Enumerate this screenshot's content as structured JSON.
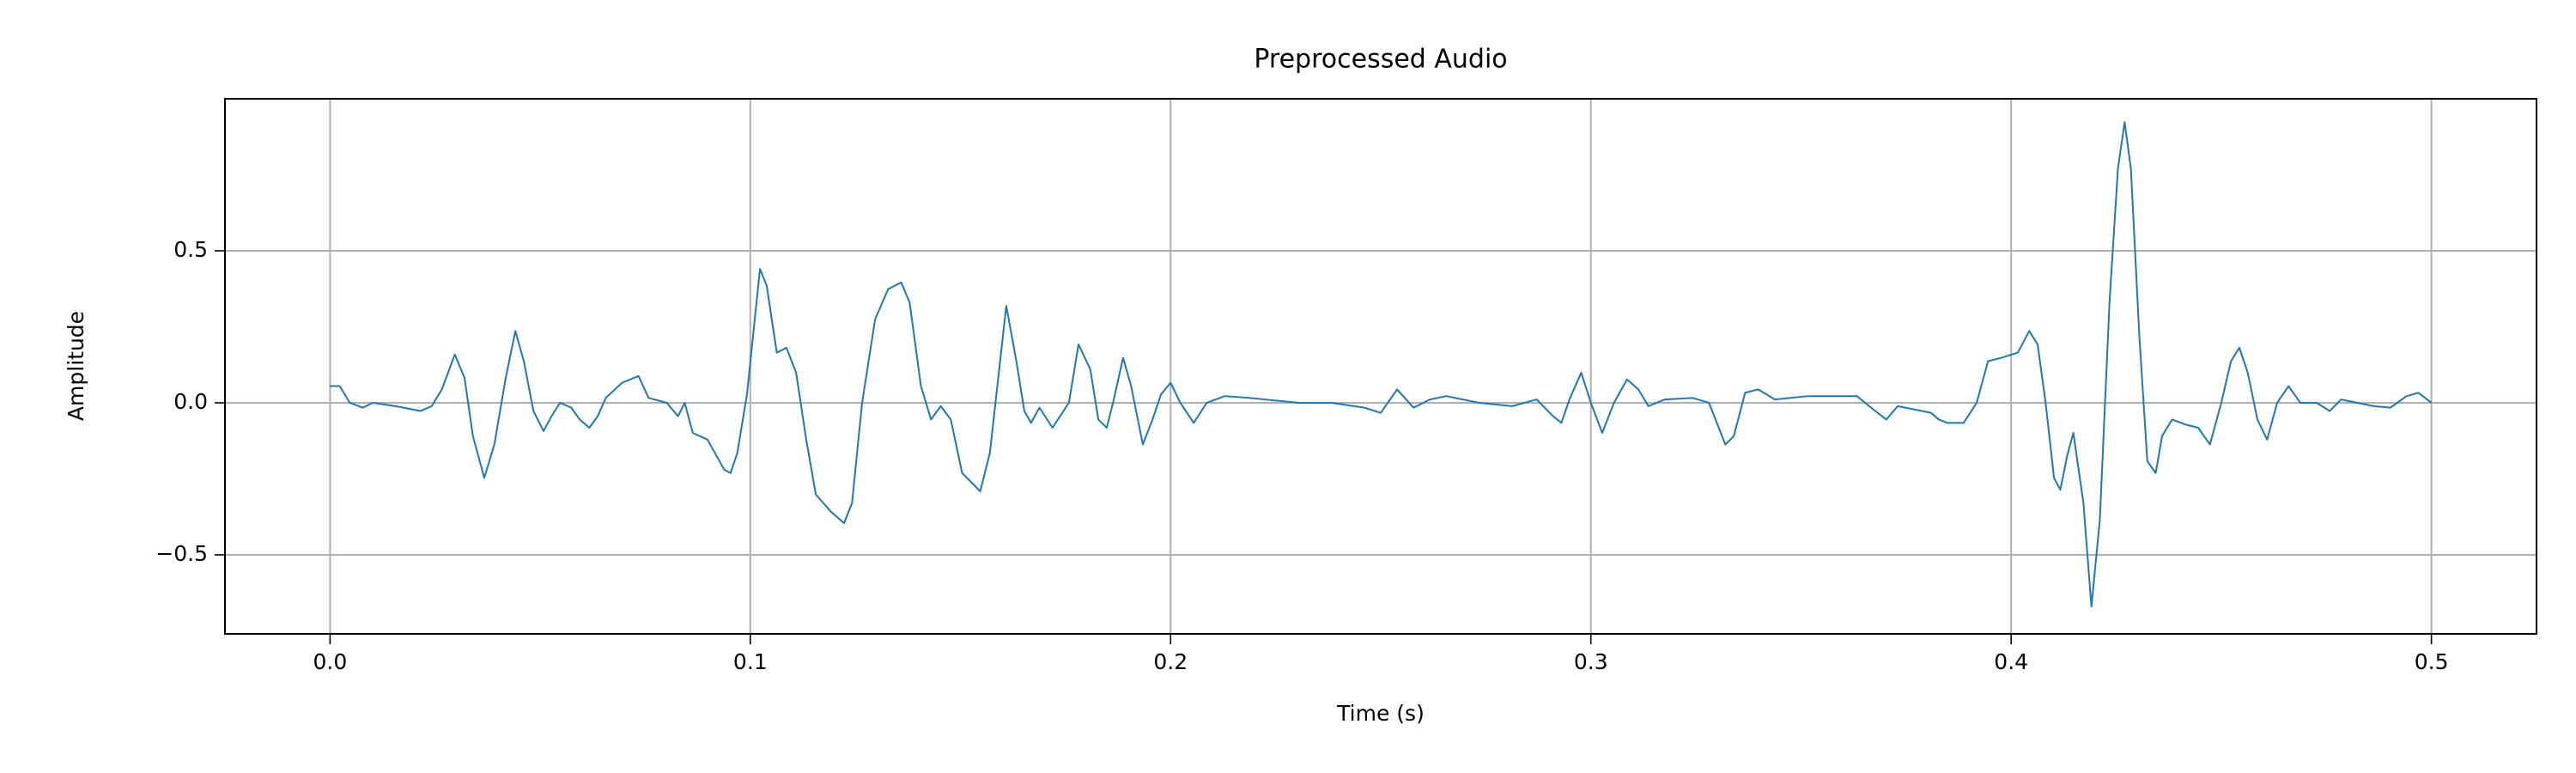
{
  "chart_data": {
    "type": "line",
    "title": "Preprocessed Audio",
    "xlabel": "Time (s)",
    "ylabel": "Amplitude",
    "color": "#1f77b4",
    "grid": true,
    "xlim": [
      -0.025,
      0.525
    ],
    "xticks": [
      {
        "value": 0,
        "label": "0.0"
      },
      0.1,
      0.2,
      0.3,
      0.4,
      0.5
    ],
    "ylim": [
      -0.76,
      1.0
    ],
    "yticks": [
      {
        "value": -0.5,
        "label": "−0.5"
      },
      {
        "value": 0,
        "label": "0.0"
      },
      0.5
    ],
    "x": [
      0,
      0.0023,
      0.0047,
      0.0078,
      0.0102,
      0.0156,
      0.0215,
      0.0242,
      0.0266,
      0.0297,
      0.032,
      0.034,
      0.0367,
      0.0391,
      0.0418,
      0.0441,
      0.0461,
      0.0484,
      0.0508,
      0.0527,
      0.0547,
      0.0574,
      0.0594,
      0.0617,
      0.0637,
      0.0656,
      0.0695,
      0.0734,
      0.0758,
      0.0801,
      0.0828,
      0.0844,
      0.0863,
      0.0898,
      0.0938,
      0.0953,
      0.0969,
      0.0992,
      0.1023,
      0.1039,
      0.1063,
      0.1086,
      0.1109,
      0.1133,
      0.1156,
      0.1191,
      0.1223,
      0.1242,
      0.1266,
      0.1297,
      0.1328,
      0.1359,
      0.1379,
      0.1406,
      0.143,
      0.1453,
      0.1477,
      0.1504,
      0.1547,
      0.157,
      0.1609,
      0.1633,
      0.1652,
      0.1668,
      0.1688,
      0.1719,
      0.1758,
      0.1781,
      0.1809,
      0.1828,
      0.1848,
      0.1863,
      0.1887,
      0.1906,
      0.1934,
      0.1957,
      0.1977,
      0.2,
      0.2023,
      0.2055,
      0.2086,
      0.2129,
      0.2188,
      0.2305,
      0.2383,
      0.2461,
      0.25,
      0.2539,
      0.2578,
      0.2617,
      0.2656,
      0.2734,
      0.2813,
      0.2871,
      0.291,
      0.293,
      0.2949,
      0.2977,
      0.3,
      0.3027,
      0.3055,
      0.3086,
      0.3113,
      0.3137,
      0.3176,
      0.3242,
      0.3281,
      0.332,
      0.334,
      0.3367,
      0.3398,
      0.3438,
      0.3516,
      0.3633,
      0.3672,
      0.3703,
      0.373,
      0.377,
      0.3809,
      0.3828,
      0.3848,
      0.3887,
      0.3918,
      0.3945,
      0.3977,
      0.4016,
      0.4043,
      0.4063,
      0.4082,
      0.4102,
      0.4117,
      0.4133,
      0.4148,
      0.4172,
      0.4191,
      0.4211,
      0.4234,
      0.4254,
      0.427,
      0.4285,
      0.4305,
      0.4324,
      0.4344,
      0.4359,
      0.4383,
      0.4414,
      0.4445,
      0.4473,
      0.45,
      0.4523,
      0.4543,
      0.4563,
      0.4586,
      0.4609,
      0.4633,
      0.466,
      0.4688,
      0.4727,
      0.4758,
      0.4785,
      0.4824,
      0.4863,
      0.4902,
      0.4941,
      0.4969,
      0.5
    ],
    "values": [
      0.055,
      0.055,
      0,
      -0.016,
      0,
      -0.011,
      -0.027,
      -0.011,
      0.044,
      0.159,
      0.082,
      -0.11,
      -0.247,
      -0.137,
      0.082,
      0.236,
      0.137,
      -0.027,
      -0.093,
      -0.044,
      0,
      -0.016,
      -0.055,
      -0.082,
      -0.044,
      0.016,
      0.066,
      0.088,
      0.016,
      0,
      -0.044,
      0,
      -0.099,
      -0.121,
      -0.22,
      -0.231,
      -0.165,
      0.027,
      0.44,
      0.385,
      0.165,
      0.181,
      0.099,
      -0.121,
      -0.302,
      -0.357,
      -0.396,
      -0.33,
      0,
      0.275,
      0.374,
      0.396,
      0.33,
      0.055,
      -0.055,
      -0.011,
      -0.055,
      -0.231,
      -0.291,
      -0.165,
      0.319,
      0.137,
      -0.027,
      -0.066,
      -0.016,
      -0.082,
      0,
      0.192,
      0.11,
      -0.055,
      -0.082,
      0,
      0.148,
      0.055,
      -0.137,
      -0.055,
      0.027,
      0.066,
      0,
      -0.066,
      0,
      0.022,
      0.016,
      0,
      0,
      -0.016,
      -0.033,
      0.044,
      -0.016,
      0.011,
      0.022,
      0,
      -0.011,
      0.011,
      -0.044,
      -0.066,
      0.011,
      0.099,
      0,
      -0.099,
      0,
      0.077,
      0.044,
      -0.011,
      0.011,
      0.016,
      0,
      -0.137,
      -0.11,
      0.033,
      0.044,
      0.011,
      0.022,
      0.022,
      -0.022,
      -0.055,
      -0.011,
      -0.022,
      -0.033,
      -0.055,
      -0.066,
      -0.066,
      0,
      0.137,
      0.148,
      0.165,
      0.236,
      0.192,
      0,
      -0.247,
      -0.286,
      -0.176,
      -0.099,
      -0.33,
      -0.67,
      -0.385,
      0.33,
      0.769,
      0.923,
      0.769,
      0.22,
      -0.192,
      -0.231,
      -0.11,
      -0.055,
      -0.071,
      -0.082,
      -0.137,
      0,
      0.137,
      0.181,
      0.099,
      -0.055,
      -0.121,
      0,
      0.055,
      0,
      0,
      -0.027,
      0.011,
      0,
      -0.011,
      -0.016,
      0.022,
      0.033,
      0
    ]
  }
}
